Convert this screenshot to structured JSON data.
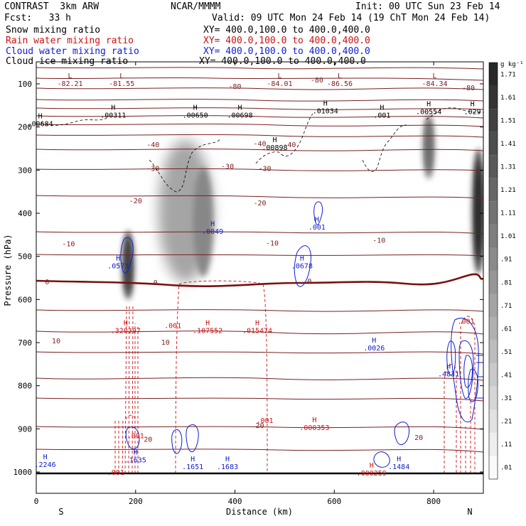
{
  "header": {
    "model": "CONTRAST  3km ARW",
    "org": "NCAR/MMMM",
    "init": "Init: 00 UTC Sun 23 Feb 14",
    "fcst": "Fcst:   33 h",
    "valid": "Valid: 09 UTC Mon 24 Feb 14 (19 ChT Mon 24 Feb 14)"
  },
  "fields": [
    {
      "name": "Snow mixing ratio",
      "xy": "XY= 400.0,100.0 to 400.0,400.0",
      "color": "#000000"
    },
    {
      "name": "Rain water mixing ratio",
      "xy": "XY= 400.0,100.0 to 400.0,400.0",
      "color": "#cc1111"
    },
    {
      "name": "Cloud water mixing ratio",
      "xy": "XY= 400.0,100.0 to 400.0,400.0",
      "color": "#1020cc"
    },
    {
      "name": "Cloud ice mixing ratio",
      "xy": "XY= 400.0,100.0 to 400.0,400.0",
      "color": "#000000"
    }
  ],
  "chart_data": {
    "type": "cross-section",
    "xlabel": "Distance (km)",
    "ylabel": "Pressure (hPa)",
    "xlim": [
      0,
      900
    ],
    "ylim": [
      1000,
      50
    ],
    "xticks": [
      0,
      200,
      400,
      600,
      800
    ],
    "yticks": [
      100,
      200,
      300,
      400,
      500,
      600,
      700,
      800,
      900,
      1000
    ],
    "end_labels": {
      "left": "S",
      "right": "N"
    },
    "colorbar": {
      "unit": "g kg⁻¹",
      "levels": [
        ".01",
        ".11",
        ".21",
        ".31",
        ".41",
        ".51",
        ".61",
        ".71",
        ".81",
        ".91",
        "1.01",
        "1.11",
        "1.21",
        "1.31",
        "1.41",
        "1.51",
        "1.61",
        "1.71"
      ]
    },
    "temperature_contours_c": [
      -80,
      -70,
      -60,
      -50,
      -40,
      -30,
      -20,
      -10,
      0,
      10,
      20
    ],
    "isotherm_labels": [
      {
        "text": "-80",
        "x": 400,
        "p": 105
      },
      {
        "text": "-80",
        "x": 565,
        "p": 90
      },
      {
        "text": "-80",
        "x": 870,
        "p": 108
      },
      {
        "text": "-40",
        "x": 235,
        "p": 240
      },
      {
        "text": "-40",
        "x": 510,
        "p": 240
      },
      {
        "text": "-40",
        "x": 450,
        "p": 238
      },
      {
        "text": "-30",
        "x": 235,
        "p": 295
      },
      {
        "text": "-30",
        "x": 385,
        "p": 290
      },
      {
        "text": "-30",
        "x": 460,
        "p": 295
      },
      {
        "text": "-20",
        "x": 200,
        "p": 370
      },
      {
        "text": "-20",
        "x": 450,
        "p": 375
      },
      {
        "text": "-10",
        "x": 65,
        "p": 470
      },
      {
        "text": "-10",
        "x": 475,
        "p": 468
      },
      {
        "text": "-10",
        "x": 690,
        "p": 462
      },
      {
        "text": "0",
        "x": 22,
        "p": 558
      },
      {
        "text": "0",
        "x": 240,
        "p": 560
      },
      {
        "text": "0",
        "x": 550,
        "p": 557
      },
      {
        "text": "10",
        "x": 40,
        "p": 695
      },
      {
        "text": "10",
        "x": 260,
        "p": 698
      },
      {
        "text": "20",
        "x": 225,
        "p": 923
      },
      {
        "text": "20",
        "x": 450,
        "p": 891
      },
      {
        "text": "20",
        "x": 770,
        "p": 919
      }
    ],
    "max_min_labels": [
      {
        "type": "L",
        "value": "-82.21",
        "x": 68,
        "p": 87
      },
      {
        "type": "L",
        "value": "-81.55",
        "x": 172,
        "p": 87
      },
      {
        "type": "L",
        "value": "-84.01",
        "x": 490,
        "p": 87
      },
      {
        "type": "L",
        "value": "-86.56",
        "x": 611,
        "p": 87
      },
      {
        "type": "L",
        "value": "-84.34",
        "x": 802,
        "p": 87
      },
      {
        "type": "H",
        "value": ".00684",
        "x": 8,
        "p": 180,
        "field": "snow"
      },
      {
        "type": "H",
        "value": ".00311",
        "x": 155,
        "p": 160,
        "field": "snow"
      },
      {
        "type": "H",
        "value": ".00650",
        "x": 320,
        "p": 160,
        "field": "snow"
      },
      {
        "type": "H",
        "value": ".00698",
        "x": 410,
        "p": 160,
        "field": "snow"
      },
      {
        "type": "H",
        "value": ".01034",
        "x": 582,
        "p": 150,
        "field": "snow"
      },
      {
        "type": "H",
        "value": ".001",
        "x": 696,
        "p": 160,
        "field": "snow"
      },
      {
        "type": "H",
        "value": ".00554",
        "x": 790,
        "p": 152,
        "field": "snow"
      },
      {
        "type": "H",
        "value": ".029",
        "x": 878,
        "p": 152,
        "field": "snow"
      },
      {
        "type": "H",
        "value": ".00898",
        "x": 480,
        "p": 235,
        "field": "snow"
      },
      {
        "type": "H",
        "value": ".0049",
        "x": 355,
        "p": 430,
        "field": "cloud"
      },
      {
        "type": "H",
        "value": ".001",
        "x": 565,
        "p": 420,
        "field": "cloud"
      },
      {
        "type": "H",
        "value": ".0573",
        "x": 165,
        "p": 510,
        "field": "cloud"
      },
      {
        "type": "H",
        "value": ".0678",
        "x": 535,
        "p": 510,
        "field": "cloud"
      },
      {
        "type": "H",
        "value": ".320397",
        "x": 180,
        "p": 660,
        "field": "rain"
      },
      {
        "type": "H",
        "value": ".107552",
        "x": 345,
        "p": 660,
        "field": "rain"
      },
      {
        "type": "H",
        "value": ".015474",
        "x": 445,
        "p": 660,
        "field": "rain"
      },
      {
        "type": "H",
        "value": ".0026",
        "x": 680,
        "p": 700,
        "field": "cloud"
      },
      {
        "type": "H",
        "value": ".4831",
        "x": 830,
        "p": 760,
        "field": "cloud"
      },
      {
        "type": "H",
        "value": ".000353",
        "x": 560,
        "p": 885,
        "field": "rain"
      },
      {
        "type": "H",
        "value": ".2246",
        "x": 18,
        "p": 970,
        "field": "cloud"
      },
      {
        "type": "H",
        "value": ".1635",
        "x": 200,
        "p": 960,
        "field": "cloud"
      },
      {
        "type": "H",
        "value": ".1651",
        "x": 315,
        "p": 975,
        "field": "cloud"
      },
      {
        "type": "H",
        "value": ".1683",
        "x": 385,
        "p": 975,
        "field": "cloud"
      },
      {
        "type": "H",
        "value": ".1484",
        "x": 730,
        "p": 975,
        "field": "cloud"
      },
      {
        "type": "H",
        "value": ".000259",
        "x": 675,
        "p": 990,
        "field": "rain"
      }
    ],
    "field_labels": [
      {
        "text": ".001",
        "x": 275,
        "p": 660,
        "field": "rain"
      },
      {
        "text": ".001",
        "x": 460,
        "p": 880,
        "field": "rain"
      },
      {
        "text": ".001",
        "x": 160,
        "p": 1000,
        "field": "rain"
      },
      {
        "text": ".001",
        "x": 865,
        "p": 650,
        "field": "rain"
      },
      {
        "text": ".001",
        "x": 200,
        "p": 915,
        "field": "rain"
      }
    ],
    "shaded_snow_columns": [
      {
        "x": 185,
        "p_top": 440,
        "p_bot": 600,
        "max": 1.2
      },
      {
        "x": 300,
        "p_top": 230,
        "p_bot": 560,
        "max": 0.5
      },
      {
        "x": 790,
        "p_top": 170,
        "p_bot": 320,
        "max": 0.8
      },
      {
        "x": 890,
        "p_top": 250,
        "p_bot": 540,
        "max": 1.4
      }
    ]
  }
}
